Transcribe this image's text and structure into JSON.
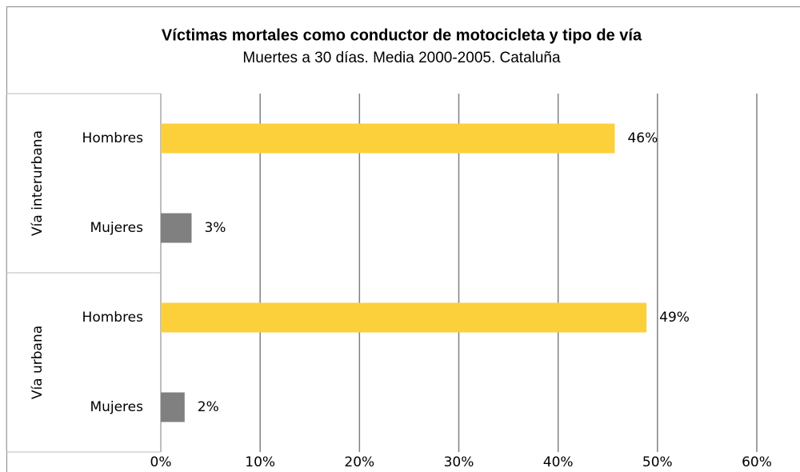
{
  "chart_data": {
    "type": "bar",
    "orientation": "horizontal",
    "title": "Víctimas mortales como conductor de motocicleta y tipo de vía",
    "subtitle": "Muertes a 30 días. Media 2000-2005. Cataluña",
    "groups": [
      {
        "label": "Vía interurbana",
        "size": 2
      },
      {
        "label": "Vía urbana",
        "size": 2
      }
    ],
    "categories": [
      "Hombres",
      "Mujeres",
      "Hombres",
      "Mujeres"
    ],
    "values": [
      45.7,
      3.1,
      48.9,
      2.4
    ],
    "value_labels": [
      "46%",
      "3%",
      "49%",
      "2%"
    ],
    "colors": [
      "#fcd03a",
      "#808080",
      "#fcd03a",
      "#808080"
    ],
    "xlim": [
      0,
      60
    ],
    "xticks": [
      {
        "value": 0,
        "label": "0%"
      },
      {
        "value": 10,
        "label": "10%"
      },
      {
        "value": 20,
        "label": "20%"
      },
      {
        "value": 30,
        "label": "30%"
      },
      {
        "value": 40,
        "label": "40%"
      },
      {
        "value": 50,
        "label": "50%"
      },
      {
        "value": 60,
        "label": "60%"
      }
    ],
    "grid": true
  }
}
